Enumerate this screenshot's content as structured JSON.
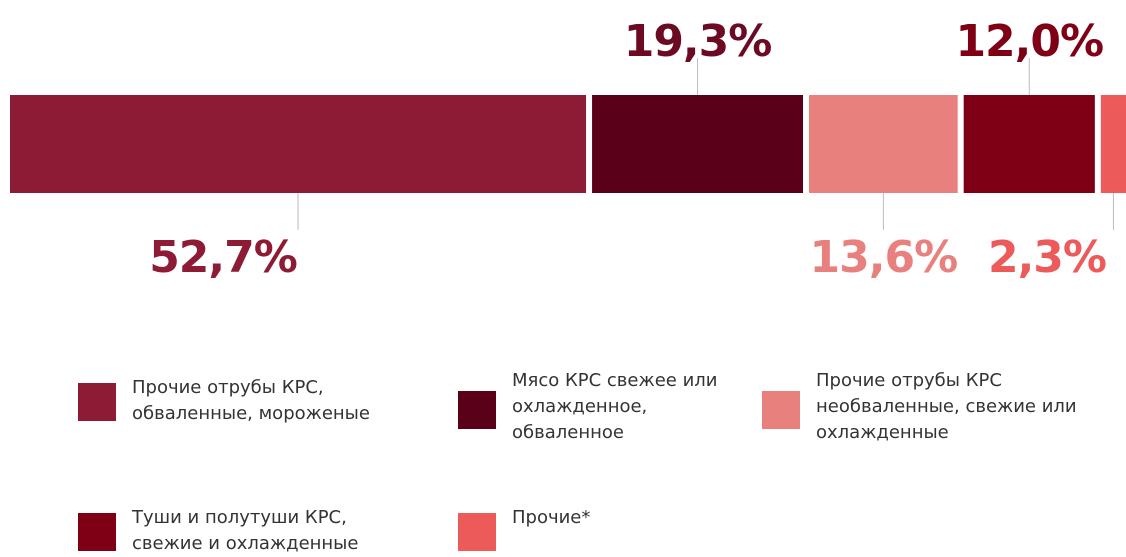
{
  "chart_data": {
    "type": "stacked_bar",
    "series": [
      {
        "name": "Прочие отрубы КРС, обваленные, мороженые",
        "color": "#8e1b35",
        "label_color": "#8e1b35",
        "values": [
          52.7
        ],
        "value_labels": [
          "52,7%"
        ]
      },
      {
        "name": "Мясо КРС свежее или охлажденное, обваленное",
        "color": "#5a0019",
        "label_color": "#6b0a22",
        "values": [
          19.3
        ],
        "value_labels": [
          "19,3%"
        ]
      },
      {
        "name": "Прочие отрубы КРС необваленные, свежие или охлажденные",
        "color": "#e8807e",
        "label_color": "#e8807e",
        "values": [
          13.6
        ],
        "value_labels": [
          "13,6%"
        ]
      },
      {
        "name": "Туши и полутуши КРС, свежие и охлажденные",
        "color": "#7f0015",
        "label_color": "#7f0015",
        "values": [
          12.0
        ],
        "value_labels": [
          "12,0%"
        ]
      },
      {
        "name": "Прочие*",
        "color": "#ec5a5a",
        "label_color": "#ec5a5a",
        "values": [
          2.3
        ],
        "value_labels": [
          "2,3%"
        ]
      }
    ]
  }
}
